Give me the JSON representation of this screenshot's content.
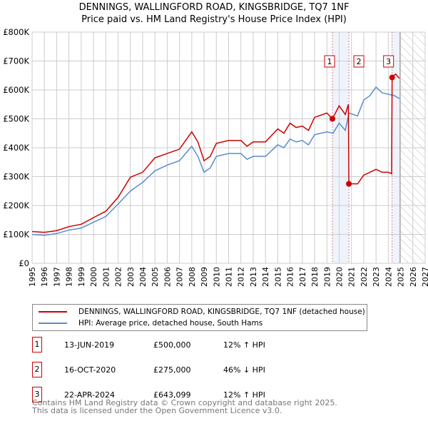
{
  "chart_data": {
    "type": "line",
    "title": "DENNINGS, WALLINGFORD ROAD, KINGSBRIDGE, TQ7 1NF",
    "subtitle": "Price paid vs. HM Land Registry's House Price Index (HPI)",
    "xlim": [
      1995,
      2027
    ],
    "ylim": [
      0,
      800000
    ],
    "yticks": [
      {
        "v": 0,
        "label": "£0"
      },
      {
        "v": 100000,
        "label": "£100K"
      },
      {
        "v": 200000,
        "label": "£200K"
      },
      {
        "v": 300000,
        "label": "£300K"
      },
      {
        "v": 400000,
        "label": "£400K"
      },
      {
        "v": 500000,
        "label": "£500K"
      },
      {
        "v": 600000,
        "label": "£600K"
      },
      {
        "v": 700000,
        "label": "£700K"
      },
      {
        "v": 800000,
        "label": "£800K"
      }
    ],
    "xticks": [
      "1995",
      "1996",
      "1997",
      "1998",
      "1999",
      "2000",
      "2001",
      "2002",
      "2003",
      "2004",
      "2005",
      "2006",
      "2007",
      "2008",
      "2009",
      "2010",
      "2011",
      "2012",
      "2013",
      "2014",
      "2015",
      "2016",
      "2017",
      "2018",
      "2019",
      "2020",
      "2021",
      "2022",
      "2023",
      "2024",
      "2025",
      "2026",
      "2027"
    ],
    "grid": true,
    "series": [
      {
        "name": "DENNINGS, WALLINGFORD ROAD, KINGSBRIDGE, TQ7 1NF (detached house)",
        "color": "#cc0000",
        "points": [
          [
            1995,
            110000
          ],
          [
            1996,
            107000
          ],
          [
            1997,
            113000
          ],
          [
            1998,
            127000
          ],
          [
            1999,
            135000
          ],
          [
            2000,
            158000
          ],
          [
            2001,
            180000
          ],
          [
            2002,
            228000
          ],
          [
            2003,
            298000
          ],
          [
            2004,
            315000
          ],
          [
            2005,
            365000
          ],
          [
            2006,
            380000
          ],
          [
            2007,
            395000
          ],
          [
            2008,
            455000
          ],
          [
            2008.5,
            420000
          ],
          [
            2009,
            355000
          ],
          [
            2009.5,
            370000
          ],
          [
            2010,
            415000
          ],
          [
            2011,
            425000
          ],
          [
            2012,
            425000
          ],
          [
            2012.5,
            405000
          ],
          [
            2013,
            420000
          ],
          [
            2014,
            420000
          ],
          [
            2015,
            465000
          ],
          [
            2015.5,
            450000
          ],
          [
            2016,
            485000
          ],
          [
            2016.5,
            470000
          ],
          [
            2017,
            475000
          ],
          [
            2017.5,
            460000
          ],
          [
            2018,
            505000
          ],
          [
            2019,
            520000
          ],
          [
            2019.45,
            500000
          ],
          [
            2020,
            545000
          ],
          [
            2020.5,
            515000
          ],
          [
            2020.75,
            550000
          ],
          [
            2020.79,
            275000
          ],
          [
            2021.5,
            275000
          ],
          [
            2022,
            305000
          ],
          [
            2022.5,
            315000
          ],
          [
            2023,
            325000
          ],
          [
            2023.5,
            315000
          ],
          [
            2024,
            315000
          ],
          [
            2024.27,
            310000
          ],
          [
            2024.31,
            643099
          ],
          [
            2024.6,
            655000
          ],
          [
            2024.9,
            640000
          ]
        ]
      },
      {
        "name": "HPI: Average price, detached house, South Hams",
        "color": "#5b8ccc",
        "points": [
          [
            1995,
            100000
          ],
          [
            1996,
            97000
          ],
          [
            1997,
            103000
          ],
          [
            1998,
            115000
          ],
          [
            1999,
            122000
          ],
          [
            2000,
            142000
          ],
          [
            2001,
            162000
          ],
          [
            2002,
            205000
          ],
          [
            2003,
            250000
          ],
          [
            2004,
            280000
          ],
          [
            2005,
            320000
          ],
          [
            2006,
            340000
          ],
          [
            2007,
            355000
          ],
          [
            2008,
            405000
          ],
          [
            2008.5,
            370000
          ],
          [
            2009,
            315000
          ],
          [
            2009.5,
            330000
          ],
          [
            2010,
            370000
          ],
          [
            2011,
            380000
          ],
          [
            2012,
            380000
          ],
          [
            2012.5,
            360000
          ],
          [
            2013,
            370000
          ],
          [
            2014,
            370000
          ],
          [
            2015,
            410000
          ],
          [
            2015.5,
            400000
          ],
          [
            2016,
            430000
          ],
          [
            2016.5,
            420000
          ],
          [
            2017,
            425000
          ],
          [
            2017.5,
            410000
          ],
          [
            2018,
            445000
          ],
          [
            2019,
            455000
          ],
          [
            2019.5,
            450000
          ],
          [
            2020,
            485000
          ],
          [
            2020.5,
            460000
          ],
          [
            2020.8,
            520000
          ],
          [
            2021.5,
            510000
          ],
          [
            2022,
            565000
          ],
          [
            2022.5,
            580000
          ],
          [
            2023,
            610000
          ],
          [
            2023.5,
            590000
          ],
          [
            2024,
            585000
          ],
          [
            2024.5,
            580000
          ],
          [
            2024.9,
            570000
          ]
        ]
      }
    ],
    "sales": [
      {
        "n": "1",
        "x": 2019.45,
        "y": 500000
      },
      {
        "n": "2",
        "x": 2020.79,
        "y": 275000
      },
      {
        "n": "3",
        "x": 2024.31,
        "y": 643099
      }
    ],
    "shaded": [
      [
        2019.45,
        2020.79
      ],
      [
        2024.31,
        2024.95
      ]
    ],
    "forecast_hatch": [
      2024.95,
      2027
    ]
  },
  "legend": {
    "red": "DENNINGS, WALLINGFORD ROAD, KINGSBRIDGE, TQ7 1NF (detached house)",
    "blue": "HPI: Average price, detached house, South Hams"
  },
  "transactions": [
    {
      "n": "1",
      "date": "13-JUN-2019",
      "price": "£500,000",
      "hpi": "12% ↑ HPI"
    },
    {
      "n": "2",
      "date": "16-OCT-2020",
      "price": "£275,000",
      "hpi": "46% ↓ HPI"
    },
    {
      "n": "3",
      "date": "22-APR-2024",
      "price": "£643,099",
      "hpi": "12% ↑ HPI"
    }
  ],
  "footer": {
    "line1": "Contains HM Land Registry data © Crown copyright and database right 2025.",
    "line2": "This data is licensed under the Open Government Licence v3.0."
  }
}
